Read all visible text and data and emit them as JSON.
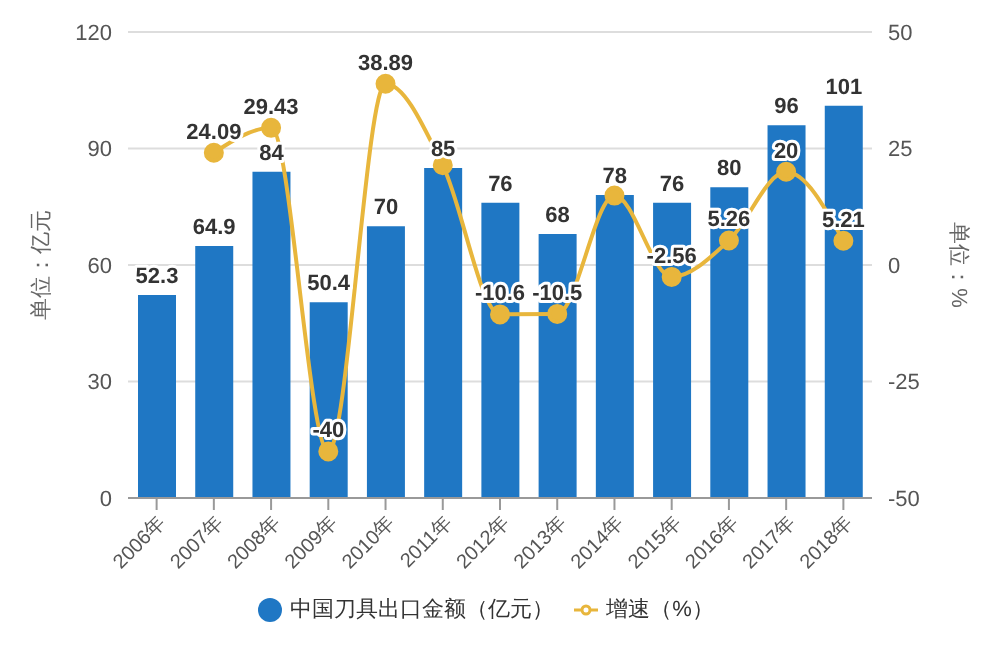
{
  "chart_data": {
    "type": "bar",
    "categories": [
      "2006年",
      "2007年",
      "2008年",
      "2009年",
      "2010年",
      "2011年",
      "2012年",
      "2013年",
      "2014年",
      "2015年",
      "2016年",
      "2017年",
      "2018年"
    ],
    "series": [
      {
        "name": "中国刀具出口金额（亿元）",
        "color": "#1f77c4",
        "values": [
          52.3,
          64.9,
          84,
          50.4,
          70,
          85,
          76,
          68,
          78,
          76,
          80,
          96,
          101
        ]
      },
      {
        "name": "增速（%）",
        "type": "line",
        "axis": "y2",
        "color": "#e8b63c",
        "values": [
          null,
          24.09,
          29.43,
          -40,
          38.89,
          21.4,
          -10.6,
          -10.5,
          14.9,
          -2.56,
          5.26,
          20,
          5.21
        ],
        "value_labels": [
          null,
          "24.09",
          "29.43",
          "-40",
          "38.89",
          null,
          "-10.6",
          "-10.5",
          null,
          "-2.56",
          "5.26",
          "20",
          "5.21"
        ]
      }
    ],
    "data_labels": true,
    "ylabel": "单位：亿元",
    "y2label": "单位：%",
    "ylim": [
      0,
      120
    ],
    "yticks": [
      0,
      30,
      60,
      90,
      120
    ],
    "y2lim": [
      -50,
      50
    ],
    "y2ticks": [
      -50,
      -25,
      0,
      25,
      50
    ],
    "grid": "y",
    "legend": "bottom",
    "marker": "circle"
  }
}
